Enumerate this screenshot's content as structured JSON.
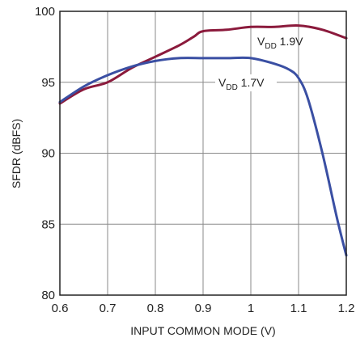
{
  "chart_data": {
    "type": "line",
    "xlabel": "INPUT COMMON MODE (V)",
    "ylabel": "SFDR (dBFS)",
    "xlim": [
      0.6,
      1.2
    ],
    "ylim": [
      80,
      100
    ],
    "xticks": [
      0.6,
      0.7,
      0.8,
      0.9,
      1,
      1.1,
      1.2
    ],
    "yticks": [
      80,
      85,
      90,
      95,
      100
    ],
    "xtick_labels": [
      "0.6",
      "0.7",
      "0.8",
      "0.9",
      "1",
      "1.1",
      "1.2"
    ],
    "ytick_labels": [
      "80",
      "85",
      "90",
      "95",
      "100"
    ],
    "grid": true,
    "series": [
      {
        "label_main": "V",
        "label_sub": "DD",
        "label_rest": " 1.9V",
        "color": "#8B1A3C",
        "x": [
          0.6,
          0.65,
          0.7,
          0.75,
          0.8,
          0.85,
          0.88,
          0.9,
          0.95,
          1.0,
          1.05,
          1.1,
          1.15,
          1.2
        ],
        "y": [
          93.5,
          94.5,
          95.0,
          96.0,
          96.8,
          97.6,
          98.2,
          98.6,
          98.7,
          98.9,
          98.9,
          99.0,
          98.7,
          98.1
        ]
      },
      {
        "label_main": "V",
        "label_sub": "DD",
        "label_rest": " 1.7V",
        "color": "#3A4FA3",
        "x": [
          0.6,
          0.65,
          0.7,
          0.75,
          0.8,
          0.85,
          0.9,
          0.95,
          1.0,
          1.05,
          1.08,
          1.1,
          1.12,
          1.15,
          1.18,
          1.2
        ],
        "y": [
          93.6,
          94.7,
          95.5,
          96.1,
          96.5,
          96.7,
          96.7,
          96.7,
          96.7,
          96.3,
          95.9,
          95.3,
          93.8,
          90.0,
          85.5,
          82.8
        ]
      }
    ]
  }
}
